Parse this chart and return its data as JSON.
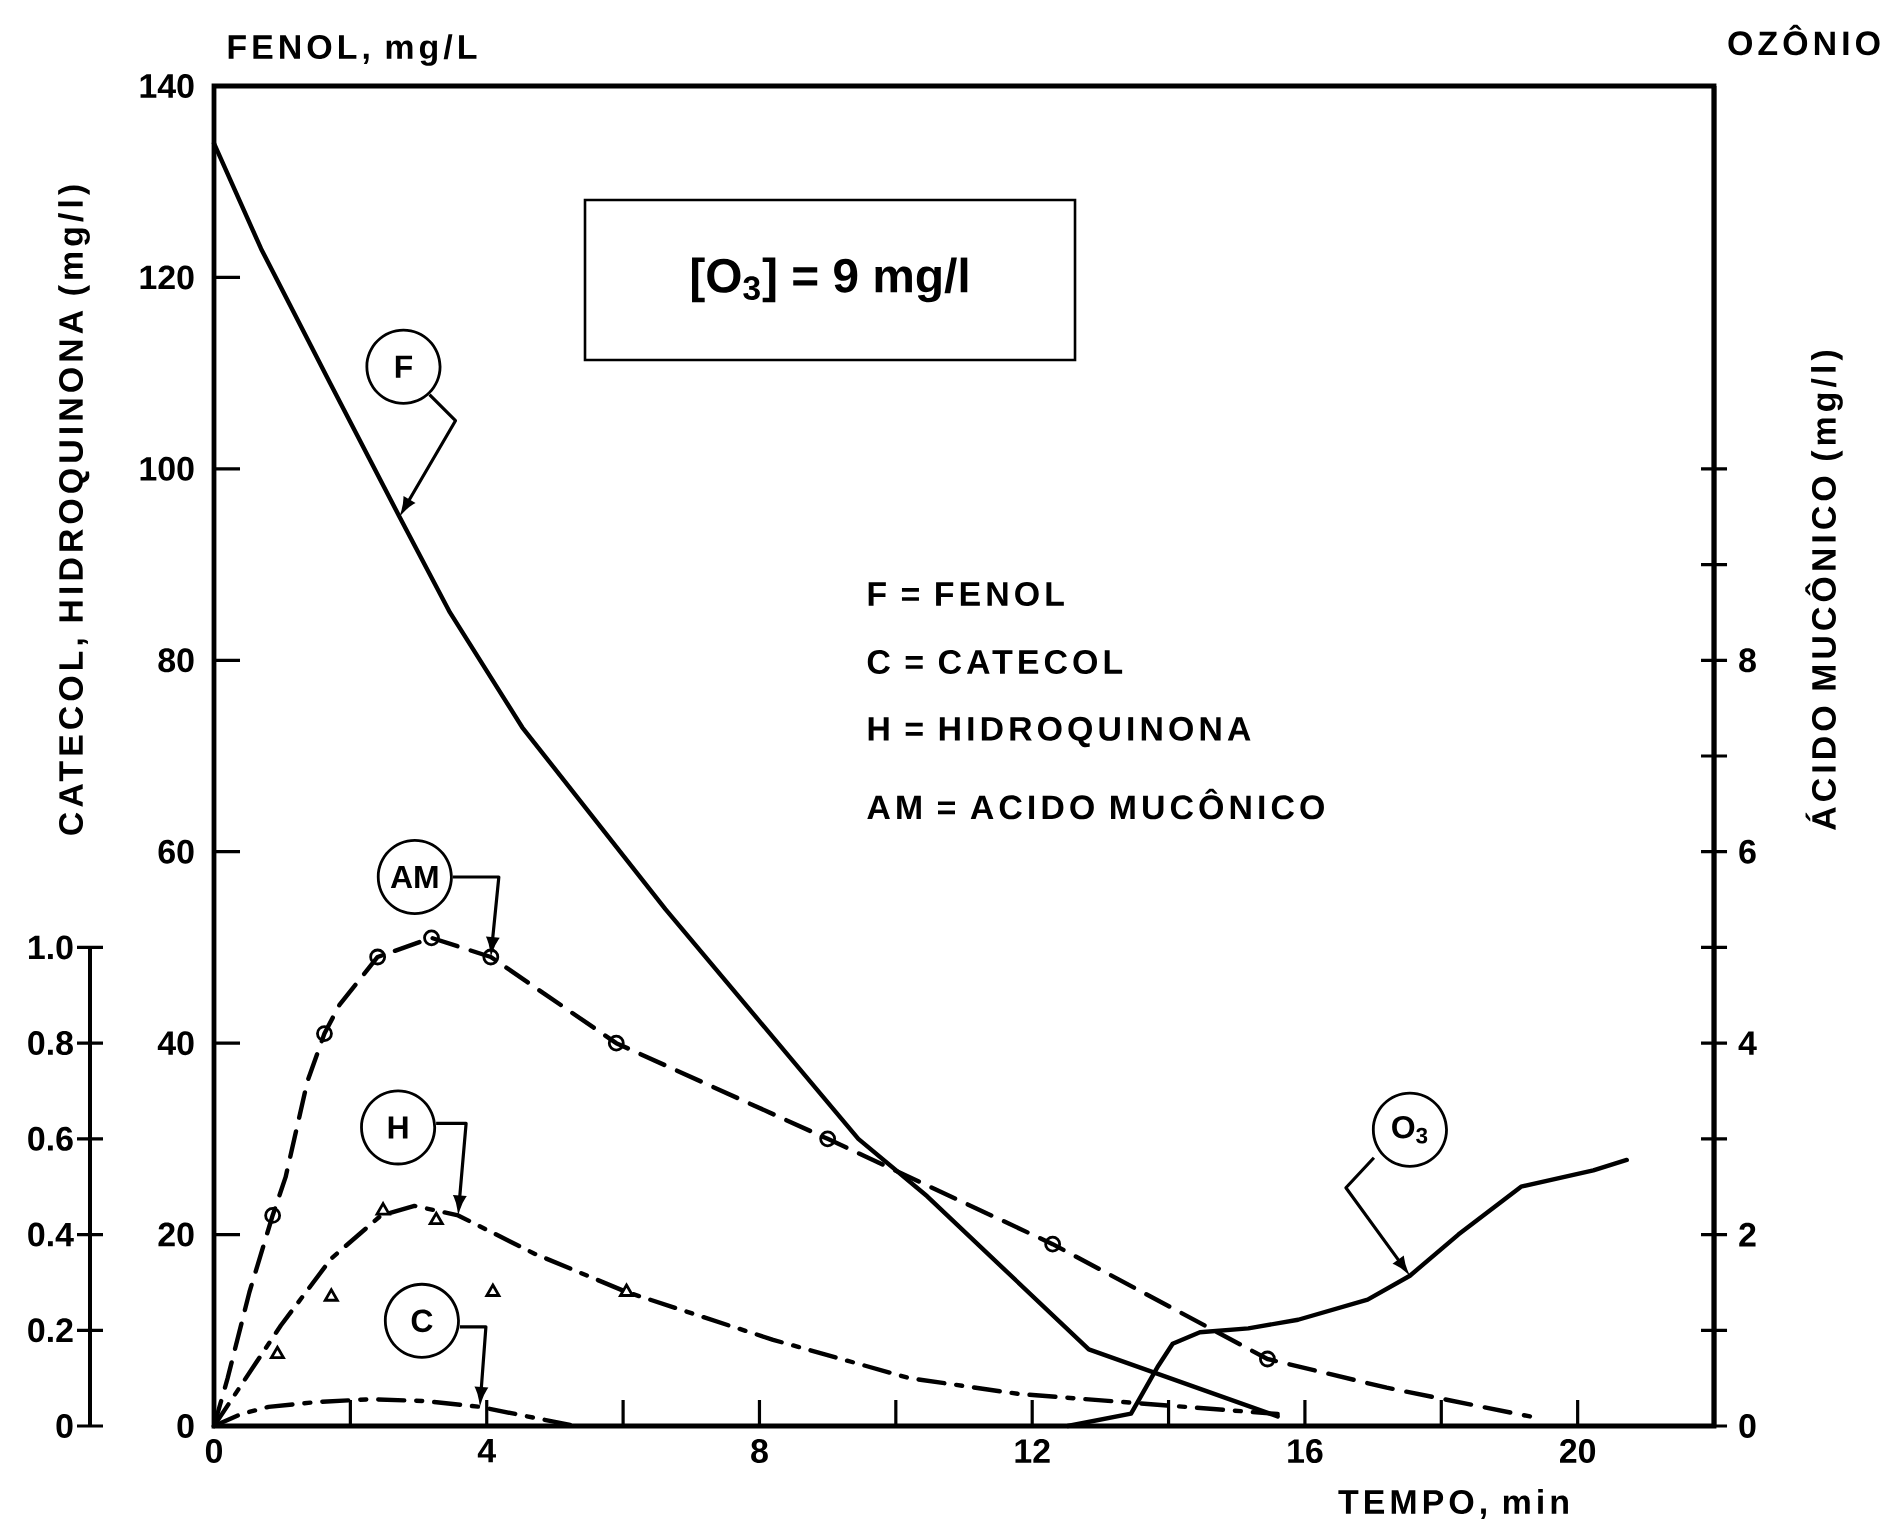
{
  "chart_data": {
    "type": "line",
    "xlabel": "TEMPO, min",
    "ylabel": "FENOL, mg/L",
    "y2label": "ÁCIDO MUCÔNICO (mg/l)",
    "y3label": "CATECOL, HIDROQUINONA (mg/l)",
    "annotations": [
      "[O$_{3}$] = 9 mg/l",
      "F = FENOL",
      "C = CATECOL",
      "H = HIDROQUINONA",
      "AM = ACIDO MUCÔNICO",
      "OZÔNIO"
    ],
    "legend": "center",
    "xlim": [
      0,
      22
    ],
    "xticks": [
      0,
      {
        "value": 2,
        "label": null
      },
      4,
      {
        "value": 6,
        "label": null
      },
      8,
      {
        "value": 10,
        "label": null
      },
      12,
      {
        "value": 14,
        "label": null
      },
      16,
      {
        "value": 18,
        "label": null
      },
      20
    ],
    "ylim": [
      0,
      140
    ],
    "yticks": [
      0,
      20,
      40,
      60,
      80,
      100,
      120,
      140
    ],
    "y2lim": [
      0,
      14
    ],
    "y2ticks": [
      0,
      {
        "value": 1,
        "label": null
      },
      2,
      {
        "value": 3,
        "label": null
      },
      4,
      {
        "value": 5,
        "label": null
      },
      6,
      {
        "value": 7,
        "label": null
      },
      8,
      {
        "value": 9,
        "label": null
      },
      {
        "value": 10,
        "label": null
      }
    ],
    "y3lim": [
      0,
      1
    ],
    "y3ticks": [
      0,
      0.2,
      0.4,
      0.6,
      0.8,
      {
        "value": 1,
        "label": "1.0"
      }
    ],
    "series": [
      {
        "name": "F",
        "type": "line",
        "color": "#000000",
        "line_style": "solid",
        "x": [
          0,
          0.69,
          1.7,
          2.72,
          3.46,
          4.52,
          6.62,
          9.45,
          10.46,
          12.83,
          15.6
        ],
        "values": [
          134,
          123,
          109,
          95,
          85,
          73,
          54,
          30,
          24,
          8,
          1
        ]
      },
      {
        "name": "AM",
        "type": "line",
        "axis": "y2",
        "color": "#000000",
        "line_style": "dashed",
        "x": [
          0,
          0.2,
          0.52,
          0.86,
          1.05,
          1.37,
          1.62,
          1.84,
          2.4,
          3.19,
          4.06,
          5.9,
          9.0,
          12.3,
          15.45,
          17.2,
          19.3
        ],
        "values": [
          0,
          0.5,
          1.4,
          2.2,
          2.6,
          3.6,
          4.1,
          4.4,
          4.9,
          5.1,
          4.9,
          4.0,
          3.0,
          1.9,
          0.7,
          0.4,
          0.1
        ]
      },
      {
        "type": "scatter",
        "axis": "y2",
        "color": "#000000",
        "marker": "circle",
        "x": [
          0.86,
          1.62,
          2.4,
          3.19,
          4.06,
          5.9,
          9.0,
          12.3,
          15.45
        ],
        "values": [
          2.2,
          4.1,
          4.9,
          5.1,
          4.9,
          4.0,
          3.0,
          1.9,
          0.7
        ]
      },
      {
        "name": "H",
        "type": "line",
        "axis": "y3",
        "color": "#000000",
        "line_style": "dashdot",
        "x": [
          0,
          0.98,
          1.72,
          2.45,
          2.94,
          3.58,
          4.7,
          6.05,
          8.2,
          10.2,
          11.8,
          15.6
        ],
        "values": [
          0,
          0.21,
          0.35,
          0.44,
          0.46,
          0.44,
          0.36,
          0.28,
          0.18,
          0.1,
          0.067,
          0.025
        ]
      },
      {
        "type": "scatter",
        "axis": "y3",
        "color": "#000000",
        "marker": "triangle",
        "x": [
          0.93,
          1.72,
          2.48,
          3.26,
          4.09,
          6.05
        ],
        "values": [
          0.15,
          0.27,
          0.45,
          0.43,
          0.28,
          0.28
        ]
      },
      {
        "name": "C",
        "type": "line",
        "axis": "y3",
        "color": "#000000",
        "line_style": "dashdot",
        "x": [
          0,
          0.4,
          0.8,
          1.5,
          2.3,
          3.1,
          3.9,
          4.6,
          5.3
        ],
        "values": [
          0,
          0.025,
          0.04,
          0.05,
          0.056,
          0.052,
          0.04,
          0.02,
          0
        ]
      },
      {
        "name": "O$_{3}$",
        "type": "line",
        "axis": "y2",
        "color": "#000000",
        "line_style": "solid",
        "x": [
          12.52,
          13.45,
          13.85,
          14.06,
          14.46,
          15.17,
          15.9,
          16.92,
          17.54,
          18.25,
          19.17,
          20.23,
          20.72
        ],
        "values": [
          0,
          0.13,
          0.63,
          0.86,
          0.98,
          1.02,
          1.11,
          1.32,
          1.57,
          2.0,
          2.5,
          2.67,
          2.78
        ]
      }
    ]
  }
}
